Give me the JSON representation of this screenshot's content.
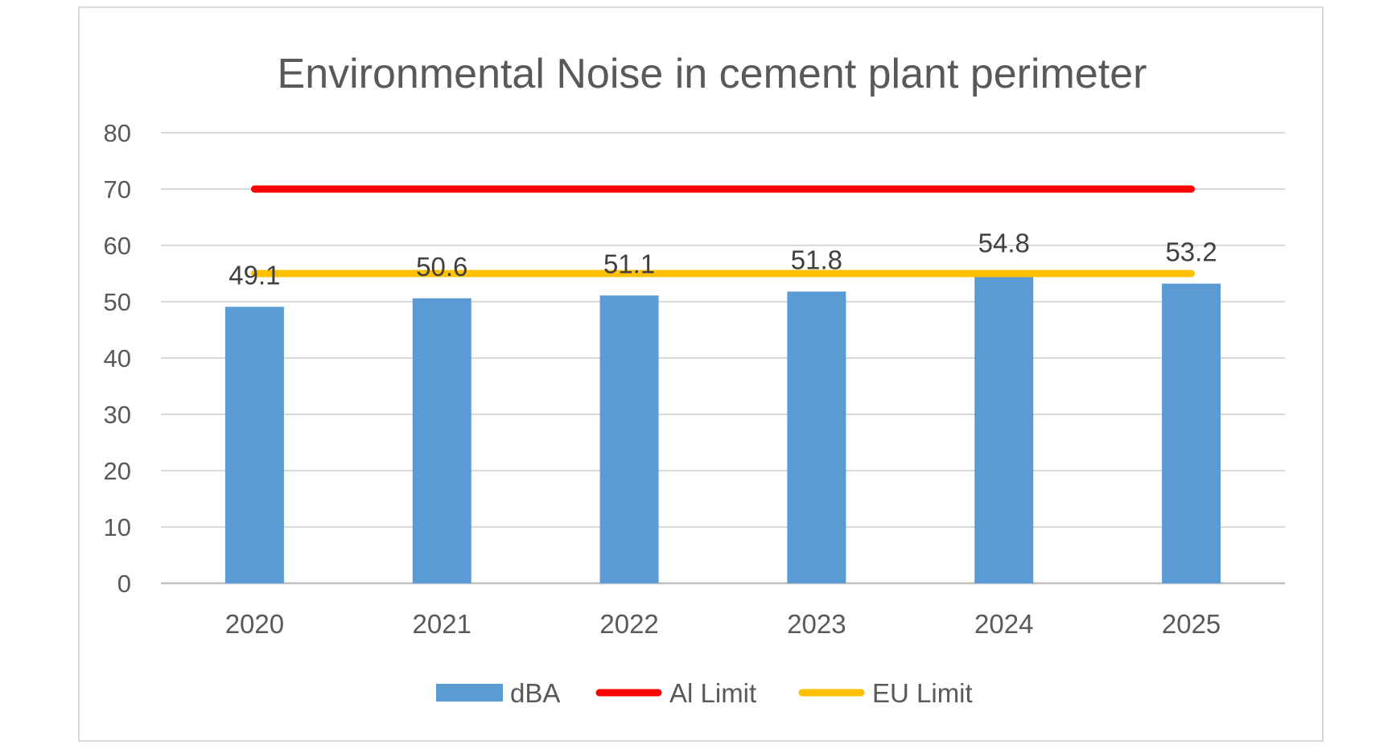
{
  "chart_data": {
    "type": "bar",
    "title": "Environmental Noise in cement plant perimeter",
    "categories": [
      "2020",
      "2021",
      "2022",
      "2023",
      "2024",
      "2025"
    ],
    "series": [
      {
        "name": "dBA",
        "kind": "bar",
        "color": "#5b9bd5",
        "values": [
          49.1,
          50.6,
          51.1,
          51.8,
          54.8,
          53.2
        ],
        "data_labels": [
          "49.1",
          "50.6",
          "51.1",
          "51.8",
          "54.8",
          "53.2"
        ]
      },
      {
        "name": "Al Limit",
        "kind": "line",
        "color": "#ff0000",
        "values": [
          70,
          70,
          70,
          70,
          70,
          70
        ]
      },
      {
        "name": "EU Limit",
        "kind": "line",
        "color": "#ffc000",
        "values": [
          55,
          55,
          55,
          55,
          55,
          55
        ]
      }
    ],
    "ylim": [
      0,
      80
    ],
    "yticks": [
      "0",
      "10",
      "20",
      "30",
      "40",
      "50",
      "60",
      "70",
      "80"
    ],
    "grid": true,
    "legend_position": "bottom",
    "xlabel": "",
    "ylabel": ""
  }
}
